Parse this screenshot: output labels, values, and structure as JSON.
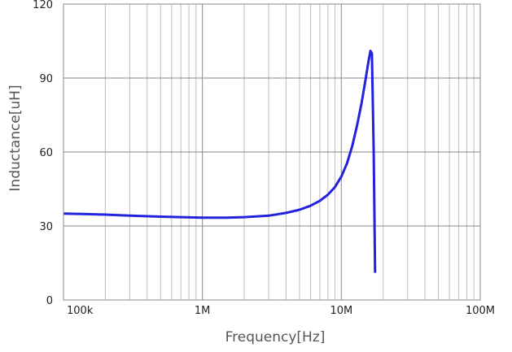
{
  "chart_data": {
    "type": "line",
    "title": "",
    "xlabel": "Frequency[Hz]",
    "ylabel": "Inductance[uH]",
    "x_scale": "log",
    "xlim": [
      100000,
      100000000
    ],
    "ylim": [
      0,
      120
    ],
    "x_ticks": [
      {
        "value": 100000,
        "label": "100k"
      },
      {
        "value": 1000000,
        "label": "1M"
      },
      {
        "value": 10000000,
        "label": "10M"
      },
      {
        "value": 100000000,
        "label": "100M"
      }
    ],
    "y_ticks": [
      {
        "value": 0,
        "label": "0"
      },
      {
        "value": 30,
        "label": "30"
      },
      {
        "value": 60,
        "label": "60"
      },
      {
        "value": 90,
        "label": "90"
      },
      {
        "value": 120,
        "label": "120"
      }
    ],
    "grid": true,
    "series": [
      {
        "color": "#2222dd",
        "x": [
          100000,
          150000,
          200000,
          300000,
          500000,
          700000,
          1000000,
          1500000,
          2000000,
          3000000,
          4000000,
          5000000,
          6000000,
          7000000,
          8000000,
          9000000,
          10000000,
          11000000,
          12000000,
          13000000,
          14000000,
          15000000,
          15700000,
          16200000,
          16600000,
          17100000,
          17500000
        ],
        "y": [
          35,
          34.8,
          34.6,
          34.2,
          33.8,
          33.6,
          33.4,
          33.4,
          33.6,
          34.2,
          35.3,
          36.6,
          38.2,
          40.2,
          42.7,
          45.8,
          50,
          55.5,
          62.5,
          71,
          80,
          90,
          97,
          101,
          100,
          60,
          11
        ]
      }
    ]
  }
}
